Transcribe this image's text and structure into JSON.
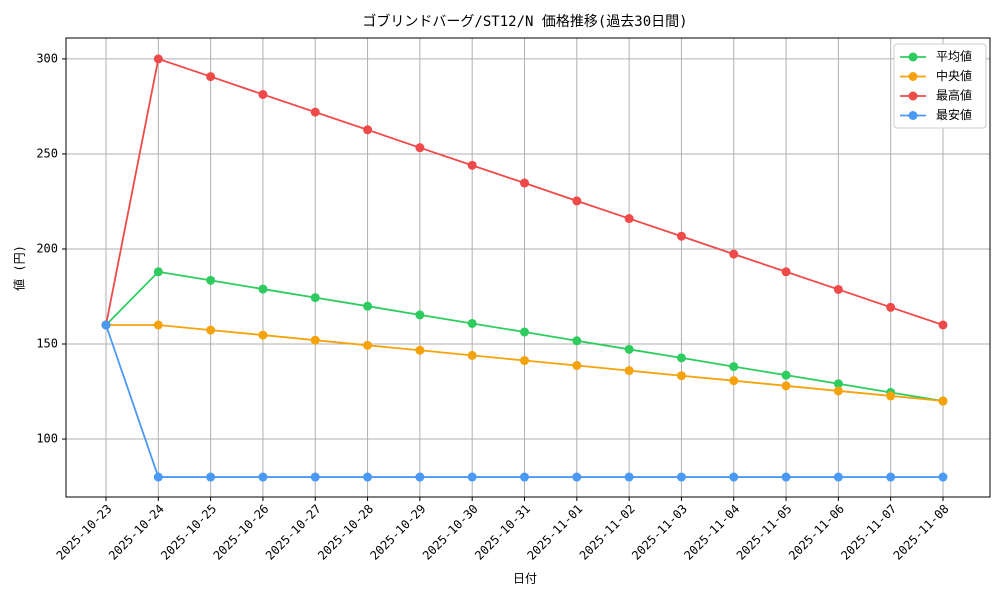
{
  "chart_data": {
    "type": "line",
    "title": "ゴブリンドバーグ/ST12/N 価格推移(過去30日間)",
    "x_label": "日付",
    "y_label": "値 (円)",
    "categories": [
      "2025-10-23",
      "2025-10-24",
      "2025-10-25",
      "2025-10-26",
      "2025-10-27",
      "2025-10-28",
      "2025-10-29",
      "2025-10-30",
      "2025-10-31",
      "2025-11-01",
      "2025-11-02",
      "2025-11-03",
      "2025-11-04",
      "2025-11-05",
      "2025-11-06",
      "2025-11-07",
      "2025-11-08"
    ],
    "series": [
      {
        "name": "平均値",
        "color": "#2ecc5f",
        "values": [
          160,
          188,
          183.5,
          178.9,
          174.4,
          169.9,
          165.3,
          160.8,
          156.3,
          151.7,
          147.2,
          142.7,
          138.1,
          133.6,
          129.1,
          124.5,
          120
        ]
      },
      {
        "name": "中央値",
        "color": "#f5a30c",
        "values": [
          160,
          160,
          157.3,
          154.7,
          152,
          149.3,
          146.7,
          144,
          141.3,
          138.7,
          136,
          133.3,
          130.7,
          128,
          125.3,
          122.7,
          120
        ]
      },
      {
        "name": "最高値",
        "color": "#ef4a4a",
        "values": [
          160,
          300,
          290.7,
          281.3,
          272,
          262.7,
          253.3,
          244,
          234.7,
          225.3,
          216,
          206.7,
          197.3,
          188,
          178.7,
          169.3,
          160
        ]
      },
      {
        "name": "最安値",
        "color": "#4a9af5",
        "values": [
          160,
          80,
          80,
          80,
          80,
          80,
          80,
          80,
          80,
          80,
          80,
          80,
          80,
          80,
          80,
          80,
          80
        ]
      }
    ],
    "ylim": [
      69.5,
      311
    ],
    "yticks": [
      100,
      150,
      200,
      250,
      300
    ],
    "grid": true,
    "legend": "upper right"
  }
}
